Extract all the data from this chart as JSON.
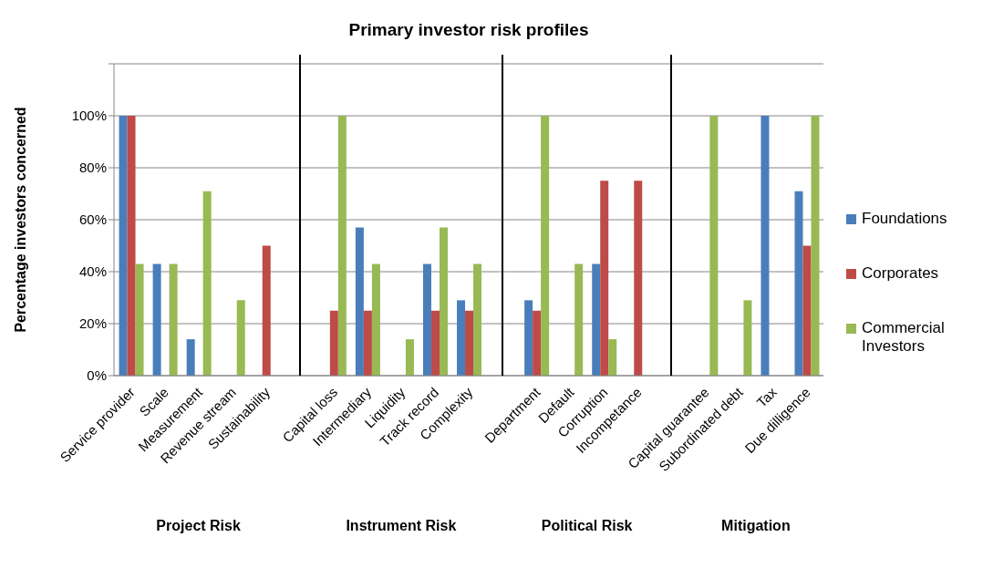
{
  "chart_data": {
    "type": "bar",
    "title": "Primary investor risk profiles",
    "ylabel": "Percentage investors concerned",
    "categories": [
      "Service provider",
      "Scale",
      "Measurement",
      "Revenue stream",
      "Sustainability",
      null,
      "Capital loss",
      "Intermediary",
      "Liquidity",
      "Track record",
      "Complexity",
      null,
      "Department",
      "Default",
      "Corruption",
      "Incompetance",
      null,
      "Capital guarantee",
      "Subordinated debt",
      "Tax",
      "Due dilligence"
    ],
    "series": [
      {
        "name": "Foundations",
        "color": "#4a7ebb",
        "values": [
          100,
          43,
          14,
          0,
          0,
          null,
          0,
          57,
          0,
          43,
          29,
          null,
          29,
          0,
          43,
          0,
          null,
          0,
          0,
          100,
          71
        ]
      },
      {
        "name": "Corporates",
        "color": "#be4b48",
        "values": [
          100,
          0,
          0,
          0,
          50,
          null,
          25,
          25,
          0,
          25,
          25,
          null,
          25,
          0,
          75,
          75,
          null,
          0,
          0,
          0,
          50
        ]
      },
      {
        "name": "Commercial Investors",
        "color": "#98b954",
        "values": [
          43,
          43,
          71,
          29,
          0,
          null,
          100,
          43,
          14,
          57,
          43,
          null,
          100,
          43,
          14,
          0,
          null,
          100,
          29,
          0,
          100
        ]
      }
    ],
    "ylim": [
      0,
      120
    ],
    "yticks": [
      {
        "value": 0,
        "label": "0%"
      },
      {
        "value": 20,
        "label": "20%"
      },
      {
        "value": 40,
        "label": "40%"
      },
      {
        "value": 60,
        "label": "60%"
      },
      {
        "value": 80,
        "label": "80%"
      },
      {
        "value": 100,
        "label": "100%"
      },
      {
        "value": 120,
        "label": null
      }
    ],
    "grid": "y",
    "legend": "right",
    "annotations": [
      "Project Risk",
      "Instrument Risk",
      "Political Risk",
      "Mitigation"
    ]
  }
}
